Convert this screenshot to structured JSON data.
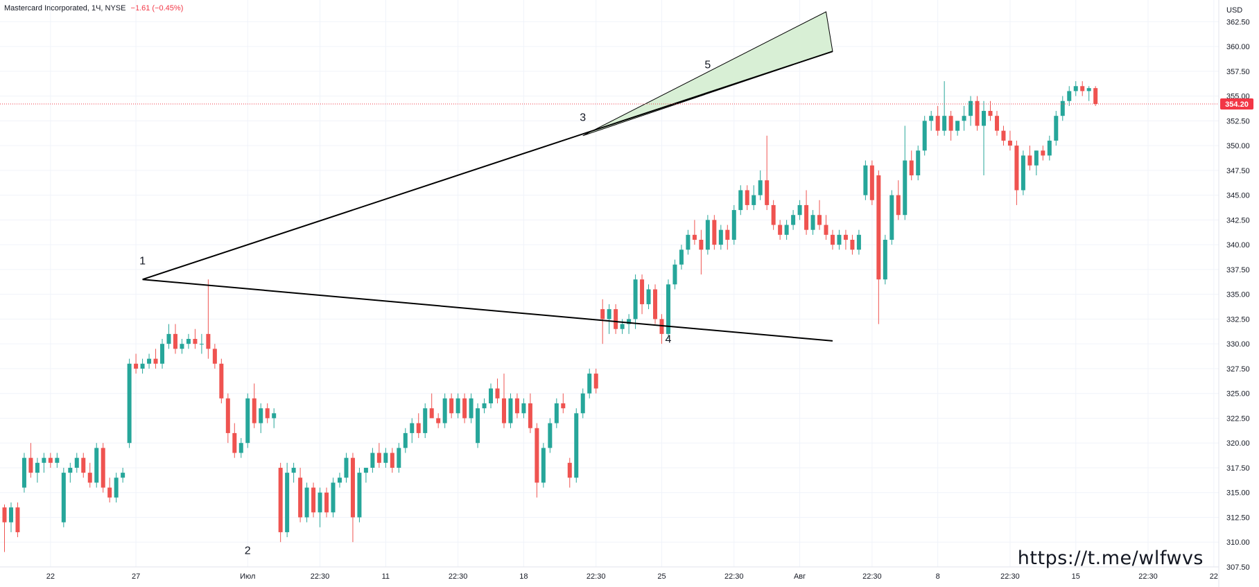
{
  "header": {
    "symbol_line": "Mastercard Incorporated, 1Ч, NYSE",
    "change": "−1.61 (−0.45%)"
  },
  "watermark": "https://t.me/wlfwvs",
  "colors": {
    "up": "#26a69a",
    "down": "#ef5350",
    "last_price": "#f23645",
    "lines": "#000000",
    "channel_fill": "#d8efd5",
    "grid": "#f0f3fa",
    "axis_text": "#131722"
  },
  "chart_data": {
    "type": "candlestick",
    "title": "Mastercard Incorporated, 1Ч, NYSE",
    "currency": "USD",
    "y_range": [
      307.5,
      363.5
    ],
    "y_ticks": [
      "307.50",
      "310.00",
      "312.50",
      "315.00",
      "317.50",
      "320.00",
      "322.50",
      "325.00",
      "327.50",
      "330.00",
      "332.50",
      "335.00",
      "337.50",
      "340.00",
      "342.50",
      "345.00",
      "347.50",
      "350.00",
      "352.50",
      "355.00",
      "357.50",
      "360.00",
      "362.50"
    ],
    "last_price": "354.20",
    "x_labels": [
      {
        "label": "22",
        "bar": 7
      },
      {
        "label": "27",
        "bar": 20
      },
      {
        "label": "Июл",
        "bar": 37
      },
      {
        "label": "22:30",
        "bar": 48
      },
      {
        "label": "11",
        "bar": 58
      },
      {
        "label": "22:30",
        "bar": 69
      },
      {
        "label": "18",
        "bar": 79
      },
      {
        "label": "22:30",
        "bar": 90
      },
      {
        "label": "25",
        "bar": 100
      },
      {
        "label": "22:30",
        "bar": 111
      },
      {
        "label": "Авг",
        "bar": 121
      },
      {
        "label": "22:30",
        "bar": 132
      },
      {
        "label": "8",
        "bar": 142
      },
      {
        "label": "22:30",
        "bar": 153
      },
      {
        "label": "15",
        "bar": 163
      },
      {
        "label": "22:30",
        "bar": 174
      },
      {
        "label": "22",
        "bar": 184
      }
    ],
    "candles": [
      [
        313.5,
        313.8,
        309.0,
        312.0
      ],
      [
        312.0,
        314.0,
        311.0,
        313.5
      ],
      [
        313.5,
        314.0,
        310.5,
        311.0
      ],
      [
        315.5,
        319.0,
        315.0,
        318.5
      ],
      [
        318.5,
        320.0,
        316.5,
        317.0
      ],
      [
        317.0,
        318.5,
        316.0,
        318.0
      ],
      [
        318.0,
        319.0,
        317.0,
        318.5
      ],
      [
        318.5,
        319.0,
        317.5,
        318.0
      ],
      [
        318.0,
        319.0,
        317.5,
        318.5
      ],
      [
        312.0,
        317.5,
        311.5,
        317.0
      ],
      [
        317.0,
        318.0,
        316.0,
        317.5
      ],
      [
        317.5,
        319.0,
        317.0,
        318.5
      ],
      [
        318.5,
        319.0,
        316.5,
        317.0
      ],
      [
        317.0,
        318.0,
        315.5,
        316.0
      ],
      [
        316.0,
        320.0,
        315.5,
        319.5
      ],
      [
        319.5,
        320.0,
        315.0,
        315.5
      ],
      [
        315.5,
        316.5,
        314.0,
        314.5
      ],
      [
        314.5,
        317.0,
        314.0,
        316.5
      ],
      [
        316.5,
        317.5,
        316.0,
        317.0
      ],
      [
        320.0,
        328.5,
        319.5,
        328.0
      ],
      [
        328.0,
        329.0,
        327.0,
        327.5
      ],
      [
        327.5,
        328.5,
        327.0,
        328.0
      ],
      [
        328.0,
        329.0,
        327.5,
        328.5
      ],
      [
        328.5,
        329.5,
        327.5,
        328.0
      ],
      [
        328.0,
        330.5,
        327.5,
        330.0
      ],
      [
        330.0,
        332.0,
        329.5,
        331.0
      ],
      [
        331.0,
        332.0,
        329.0,
        329.5
      ],
      [
        329.5,
        330.5,
        329.0,
        330.0
      ],
      [
        330.0,
        331.0,
        329.5,
        330.5
      ],
      [
        330.5,
        331.5,
        329.5,
        330.0
      ],
      [
        330.0,
        331.0,
        329.0,
        330.0
      ],
      [
        331.0,
        336.5,
        328.5,
        329.5
      ],
      [
        329.5,
        330.0,
        327.5,
        328.0
      ],
      [
        328.0,
        328.5,
        324.0,
        324.5
      ],
      [
        324.5,
        325.0,
        320.0,
        321.0
      ],
      [
        321.0,
        322.0,
        318.5,
        319.0
      ],
      [
        319.0,
        320.5,
        318.5,
        320.0
      ],
      [
        320.0,
        325.0,
        319.5,
        324.5
      ],
      [
        324.5,
        326.0,
        321.5,
        322.0
      ],
      [
        322.0,
        324.0,
        321.0,
        323.5
      ],
      [
        323.5,
        324.0,
        322.0,
        322.5
      ],
      [
        322.5,
        323.5,
        321.5,
        323.0
      ],
      [
        317.5,
        318.0,
        310.0,
        311.0
      ],
      [
        311.0,
        318.0,
        310.5,
        317.0
      ],
      [
        317.0,
        318.0,
        316.0,
        317.5
      ],
      [
        316.5,
        317.5,
        312.0,
        312.5
      ],
      [
        312.5,
        316.0,
        312.0,
        315.5
      ],
      [
        315.5,
        316.0,
        312.5,
        313.0
      ],
      [
        313.0,
        315.5,
        311.5,
        315.0
      ],
      [
        315.0,
        315.5,
        312.5,
        313.0
      ],
      [
        313.0,
        316.5,
        312.5,
        316.0
      ],
      [
        316.0,
        317.0,
        315.5,
        316.5
      ],
      [
        316.5,
        319.0,
        316.0,
        318.5
      ],
      [
        318.5,
        319.0,
        310.0,
        312.5
      ],
      [
        312.5,
        317.5,
        312.0,
        317.0
      ],
      [
        317.0,
        317.5,
        316.0,
        317.5
      ],
      [
        317.5,
        319.5,
        317.0,
        319.0
      ],
      [
        319.0,
        320.0,
        317.5,
        318.0
      ],
      [
        318.0,
        319.5,
        317.5,
        319.0
      ],
      [
        319.0,
        319.5,
        317.0,
        317.5
      ],
      [
        317.5,
        320.0,
        317.0,
        319.5
      ],
      [
        319.5,
        321.5,
        319.0,
        321.0
      ],
      [
        321.0,
        322.5,
        320.0,
        322.0
      ],
      [
        322.0,
        323.0,
        320.5,
        321.0
      ],
      [
        321.0,
        324.0,
        320.5,
        323.5
      ],
      [
        323.5,
        325.0,
        323.0,
        322.5
      ],
      [
        322.5,
        323.0,
        321.5,
        322.0
      ],
      [
        322.0,
        325.0,
        321.5,
        324.5
      ],
      [
        324.5,
        325.0,
        322.5,
        323.0
      ],
      [
        323.0,
        325.0,
        322.5,
        324.5
      ],
      [
        324.5,
        325.0,
        322.0,
        322.5
      ],
      [
        322.5,
        325.0,
        322.0,
        324.5
      ],
      [
        320.0,
        324.0,
        319.5,
        323.5
      ],
      [
        323.5,
        324.5,
        323.0,
        324.0
      ],
      [
        324.0,
        326.0,
        323.5,
        325.5
      ],
      [
        325.5,
        326.5,
        324.0,
        324.5
      ],
      [
        324.5,
        327.0,
        321.5,
        322.0
      ],
      [
        322.0,
        325.0,
        321.5,
        324.5
      ],
      [
        324.5,
        325.0,
        322.5,
        323.0
      ],
      [
        323.0,
        324.5,
        322.5,
        324.0
      ],
      [
        324.0,
        325.0,
        321.0,
        321.5
      ],
      [
        321.5,
        322.0,
        314.5,
        316.0
      ],
      [
        316.0,
        320.0,
        315.5,
        319.5
      ],
      [
        319.5,
        322.5,
        319.0,
        322.0
      ],
      [
        322.0,
        324.5,
        321.5,
        324.0
      ],
      [
        324.0,
        325.0,
        323.0,
        323.5
      ],
      [
        318.0,
        318.5,
        315.5,
        316.5
      ],
      [
        316.5,
        323.5,
        316.0,
        323.0
      ],
      [
        323.0,
        325.5,
        322.5,
        325.0
      ],
      [
        325.0,
        327.5,
        324.5,
        327.0
      ],
      [
        327.0,
        327.5,
        325.0,
        325.5
      ],
      [
        333.5,
        334.5,
        330.0,
        332.5
      ],
      [
        332.5,
        334.0,
        331.0,
        333.5
      ],
      [
        333.5,
        334.0,
        331.0,
        331.5
      ],
      [
        331.5,
        332.5,
        331.0,
        332.0
      ],
      [
        332.0,
        333.0,
        331.0,
        332.5
      ],
      [
        332.5,
        337.0,
        331.5,
        336.5
      ],
      [
        336.5,
        337.0,
        333.0,
        334.0
      ],
      [
        334.0,
        336.0,
        333.5,
        335.5
      ],
      [
        335.5,
        336.0,
        332.0,
        332.5
      ],
      [
        332.5,
        333.0,
        330.0,
        331.0
      ],
      [
        331.0,
        336.5,
        330.5,
        336.0
      ],
      [
        336.0,
        338.5,
        335.5,
        338.0
      ],
      [
        338.0,
        340.0,
        337.5,
        339.5
      ],
      [
        339.5,
        341.5,
        339.0,
        341.0
      ],
      [
        341.0,
        342.5,
        340.0,
        340.5
      ],
      [
        340.5,
        341.5,
        337.0,
        339.5
      ],
      [
        339.5,
        343.0,
        339.0,
        342.5
      ],
      [
        342.5,
        343.0,
        339.5,
        340.0
      ],
      [
        340.0,
        342.0,
        339.5,
        341.5
      ],
      [
        341.5,
        342.0,
        339.5,
        340.5
      ],
      [
        340.5,
        344.0,
        340.0,
        343.5
      ],
      [
        343.5,
        346.0,
        343.0,
        345.5
      ],
      [
        345.5,
        346.0,
        343.5,
        344.0
      ],
      [
        344.0,
        346.0,
        343.5,
        345.0
      ],
      [
        345.0,
        347.5,
        344.5,
        346.5
      ],
      [
        346.5,
        351.0,
        343.5,
        344.0
      ],
      [
        344.0,
        344.5,
        341.5,
        342.0
      ],
      [
        342.0,
        342.5,
        340.5,
        341.0
      ],
      [
        341.0,
        342.5,
        340.5,
        342.0
      ],
      [
        342.0,
        343.5,
        341.5,
        343.0
      ],
      [
        343.0,
        344.5,
        342.5,
        344.0
      ],
      [
        344.0,
        345.5,
        341.0,
        341.5
      ],
      [
        341.5,
        343.5,
        341.0,
        343.0
      ],
      [
        343.0,
        344.5,
        341.5,
        342.0
      ],
      [
        342.0,
        343.0,
        340.5,
        341.0
      ],
      [
        341.0,
        341.5,
        339.5,
        340.0
      ],
      [
        340.0,
        341.5,
        339.5,
        341.0
      ],
      [
        341.0,
        341.5,
        339.5,
        340.5
      ],
      [
        340.5,
        341.0,
        339.0,
        339.5
      ],
      [
        339.5,
        341.5,
        339.0,
        341.0
      ],
      [
        345.0,
        348.5,
        344.5,
        348.0
      ],
      [
        348.0,
        348.5,
        344.0,
        344.5
      ],
      [
        347.0,
        347.5,
        332.0,
        336.5
      ],
      [
        336.5,
        341.0,
        336.0,
        340.5
      ],
      [
        340.5,
        345.5,
        340.0,
        345.0
      ],
      [
        345.0,
        346.5,
        342.5,
        343.0
      ],
      [
        343.0,
        352.0,
        342.5,
        348.5
      ],
      [
        348.5,
        349.5,
        346.5,
        347.0
      ],
      [
        347.0,
        350.0,
        346.5,
        349.5
      ],
      [
        349.5,
        353.0,
        349.0,
        352.5
      ],
      [
        352.5,
        353.5,
        351.5,
        353.0
      ],
      [
        353.0,
        354.0,
        351.0,
        351.5
      ],
      [
        351.5,
        356.5,
        351.0,
        353.0
      ],
      [
        353.0,
        353.5,
        350.5,
        351.5
      ],
      [
        351.5,
        352.5,
        351.0,
        352.5
      ],
      [
        352.5,
        354.0,
        351.5,
        353.0
      ],
      [
        353.0,
        355.0,
        352.0,
        354.5
      ],
      [
        354.5,
        355.0,
        351.5,
        352.0
      ],
      [
        352.0,
        354.5,
        347.0,
        353.5
      ],
      [
        353.5,
        354.5,
        352.5,
        353.0
      ],
      [
        353.0,
        353.5,
        351.0,
        351.5
      ],
      [
        351.5,
        352.0,
        350.0,
        350.5
      ],
      [
        350.5,
        351.5,
        349.5,
        350.0
      ],
      [
        350.0,
        350.5,
        344.0,
        345.5
      ],
      [
        345.5,
        349.5,
        345.0,
        349.0
      ],
      [
        349.0,
        350.0,
        347.5,
        348.0
      ],
      [
        348.0,
        349.5,
        347.0,
        349.5
      ],
      [
        349.5,
        350.0,
        348.5,
        349.0
      ],
      [
        349.0,
        351.0,
        348.5,
        350.5
      ],
      [
        350.5,
        353.5,
        350.0,
        353.0
      ],
      [
        353.0,
        355.0,
        352.5,
        354.5
      ],
      [
        354.5,
        356.0,
        354.0,
        355.5
      ],
      [
        355.5,
        356.5,
        355.0,
        356.0
      ],
      [
        356.0,
        356.5,
        355.0,
        355.5
      ],
      [
        355.5,
        356.0,
        354.5,
        355.8
      ],
      [
        355.8,
        356.0,
        354.0,
        354.2
      ]
    ],
    "drawings": {
      "upper_line": {
        "from": {
          "bar": 21,
          "price": 336.5
        },
        "to": {
          "bar": 126,
          "price": 359.5
        }
      },
      "lower_line": {
        "from": {
          "bar": 21,
          "price": 336.5
        },
        "to": {
          "bar": 126,
          "price": 330.3
        }
      },
      "channel": [
        {
          "bar": 88,
          "price": 351.0
        },
        {
          "bar": 125,
          "price": 363.5
        },
        {
          "bar": 126,
          "price": 359.5
        }
      ],
      "labels": [
        {
          "text": "1",
          "bar": 21,
          "price": 338.0
        },
        {
          "text": "2",
          "bar": 37,
          "price": 308.8
        },
        {
          "text": "3",
          "bar": 88,
          "price": 352.5
        },
        {
          "text": "4",
          "bar": 101,
          "price": 330.1
        },
        {
          "text": "5",
          "bar": 107,
          "price": 357.8
        }
      ]
    }
  }
}
